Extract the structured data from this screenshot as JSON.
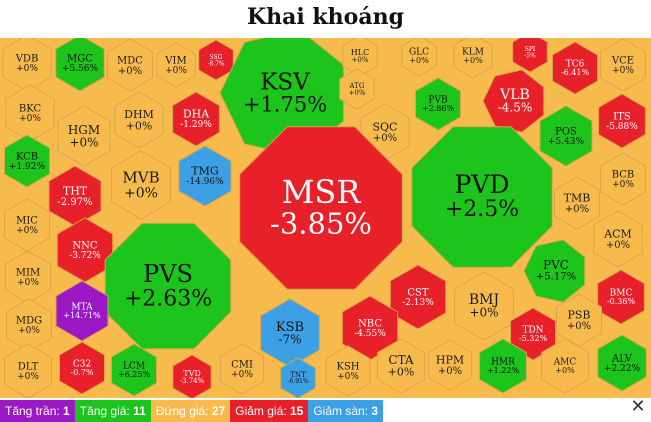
{
  "chart_title": "Khai khoáng",
  "colors": {
    "ceiling": "#9b19c4",
    "up": "#1cc41c",
    "flat": "#f7bb4d",
    "down": "#e8202a",
    "floor": "#3ca0e4"
  },
  "legend": [
    {
      "label": "Tăng trần:",
      "count": "1",
      "category": "ceiling"
    },
    {
      "label": "Tăng giá:",
      "count": "11",
      "category": "up"
    },
    {
      "label": "Đứng giá:",
      "count": "27",
      "category": "flat"
    },
    {
      "label": "Giảm giá:",
      "count": "15",
      "category": "down"
    },
    {
      "label": "Giảm sàn:",
      "count": "3",
      "category": "floor"
    }
  ],
  "close_icon": "close-icon",
  "chart_data": {
    "type": "treemap",
    "title": "Khai khoáng",
    "items": [
      {
        "ticker": "VDB",
        "change": "+0%",
        "value": 0,
        "category": "flat"
      },
      {
        "ticker": "MGC",
        "change": "+5.56%",
        "value": 5.56,
        "category": "up"
      },
      {
        "ticker": "MDC",
        "change": "+0%",
        "value": 0,
        "category": "flat"
      },
      {
        "ticker": "VIM",
        "change": "+0%",
        "value": 0,
        "category": "flat"
      },
      {
        "ticker": "SSG",
        "change": "-8.7%",
        "value": -8.7,
        "category": "down"
      },
      {
        "ticker": "KSV",
        "change": "+1.75%",
        "value": 1.75,
        "category": "up"
      },
      {
        "ticker": "HLC",
        "change": "+0%",
        "value": 0,
        "category": "flat"
      },
      {
        "ticker": "GLC",
        "change": "+0%",
        "value": 0,
        "category": "flat"
      },
      {
        "ticker": "KLM",
        "change": "+0%",
        "value": 0,
        "category": "flat"
      },
      {
        "ticker": "SPI",
        "change": "-5%",
        "value": -5,
        "category": "down"
      },
      {
        "ticker": "TC6",
        "change": "-6.41%",
        "value": -6.41,
        "category": "down"
      },
      {
        "ticker": "VCE",
        "change": "+0%",
        "value": 0,
        "category": "flat"
      },
      {
        "ticker": "BKC",
        "change": "+0%",
        "value": 0,
        "category": "flat"
      },
      {
        "ticker": "HGM",
        "change": "+0%",
        "value": 0,
        "category": "flat"
      },
      {
        "ticker": "DHM",
        "change": "+0%",
        "value": 0,
        "category": "flat"
      },
      {
        "ticker": "DHA",
        "change": "-1.29%",
        "value": -1.29,
        "category": "down"
      },
      {
        "ticker": "ATG",
        "change": "+0%",
        "value": 0,
        "category": "flat"
      },
      {
        "ticker": "PVB",
        "change": "+2.86%",
        "value": 2.86,
        "category": "up"
      },
      {
        "ticker": "VLB",
        "change": "-4.5%",
        "value": -4.5,
        "category": "down"
      },
      {
        "ticker": "ITS",
        "change": "-5.88%",
        "value": -5.88,
        "category": "down"
      },
      {
        "ticker": "SQC",
        "change": "+0%",
        "value": 0,
        "category": "flat"
      },
      {
        "ticker": "POS",
        "change": "+5.43%",
        "value": 5.43,
        "category": "up"
      },
      {
        "ticker": "KCB",
        "change": "+1.92%",
        "value": 1.92,
        "category": "up"
      },
      {
        "ticker": "MVB",
        "change": "+0%",
        "value": 0,
        "category": "flat"
      },
      {
        "ticker": "TMG",
        "change": "-14.96%",
        "value": -14.96,
        "category": "floor"
      },
      {
        "ticker": "PVD",
        "change": "+2.5%",
        "value": 2.5,
        "category": "up"
      },
      {
        "ticker": "BCB",
        "change": "+0%",
        "value": 0,
        "category": "flat"
      },
      {
        "ticker": "THT",
        "change": "-2.97%",
        "value": -2.97,
        "category": "down"
      },
      {
        "ticker": "MSR",
        "change": "-3.85%",
        "value": -3.85,
        "category": "down"
      },
      {
        "ticker": "TMB",
        "change": "+0%",
        "value": 0,
        "category": "flat"
      },
      {
        "ticker": "MIC",
        "change": "+0%",
        "value": 0,
        "category": "flat"
      },
      {
        "ticker": "ACM",
        "change": "+0%",
        "value": 0,
        "category": "flat"
      },
      {
        "ticker": "NNC",
        "change": "-3.72%",
        "value": -3.72,
        "category": "down"
      },
      {
        "ticker": "PVC",
        "change": "+5.17%",
        "value": 5.17,
        "category": "up"
      },
      {
        "ticker": "MIM",
        "change": "+0%",
        "value": 0,
        "category": "flat"
      },
      {
        "ticker": "PVS",
        "change": "+2.63%",
        "value": 2.63,
        "category": "up"
      },
      {
        "ticker": "CST",
        "change": "-2.13%",
        "value": -2.13,
        "category": "down"
      },
      {
        "ticker": "BMJ",
        "change": "+0%",
        "value": 0,
        "category": "flat"
      },
      {
        "ticker": "BMC",
        "change": "-0.36%",
        "value": -0.36,
        "category": "down"
      },
      {
        "ticker": "MDG",
        "change": "+0%",
        "value": 0,
        "category": "flat"
      },
      {
        "ticker": "MTA",
        "change": "+14.71%",
        "value": 14.71,
        "category": "ceiling"
      },
      {
        "ticker": "KSB",
        "change": "-7%",
        "value": -7,
        "category": "floor"
      },
      {
        "ticker": "NBC",
        "change": "-4.55%",
        "value": -4.55,
        "category": "down"
      },
      {
        "ticker": "PSB",
        "change": "+0%",
        "value": 0,
        "category": "flat"
      },
      {
        "ticker": "TDN",
        "change": "-5.32%",
        "value": -5.32,
        "category": "down"
      },
      {
        "ticker": "DLT",
        "change": "+0%",
        "value": 0,
        "category": "flat"
      },
      {
        "ticker": "C32",
        "change": "-0.7%",
        "value": -0.7,
        "category": "down"
      },
      {
        "ticker": "LCM",
        "change": "+6.25%",
        "value": 6.25,
        "category": "up"
      },
      {
        "ticker": "TVD",
        "change": "-3.74%",
        "value": -3.74,
        "category": "down"
      },
      {
        "ticker": "CMI",
        "change": "+0%",
        "value": 0,
        "category": "flat"
      },
      {
        "ticker": "TNT",
        "change": "-6.91%",
        "value": -6.91,
        "category": "floor"
      },
      {
        "ticker": "KSH",
        "change": "+0%",
        "value": 0,
        "category": "flat"
      },
      {
        "ticker": "CTA",
        "change": "+0%",
        "value": 0,
        "category": "flat"
      },
      {
        "ticker": "HPM",
        "change": "+0%",
        "value": 0,
        "category": "flat"
      },
      {
        "ticker": "HMR",
        "change": "+1.22%",
        "value": 1.22,
        "category": "up"
      },
      {
        "ticker": "AMC",
        "change": "+0%",
        "value": 0,
        "category": "flat"
      },
      {
        "ticker": "ALV",
        "change": "+2.22%",
        "value": 2.22,
        "category": "up"
      }
    ]
  }
}
